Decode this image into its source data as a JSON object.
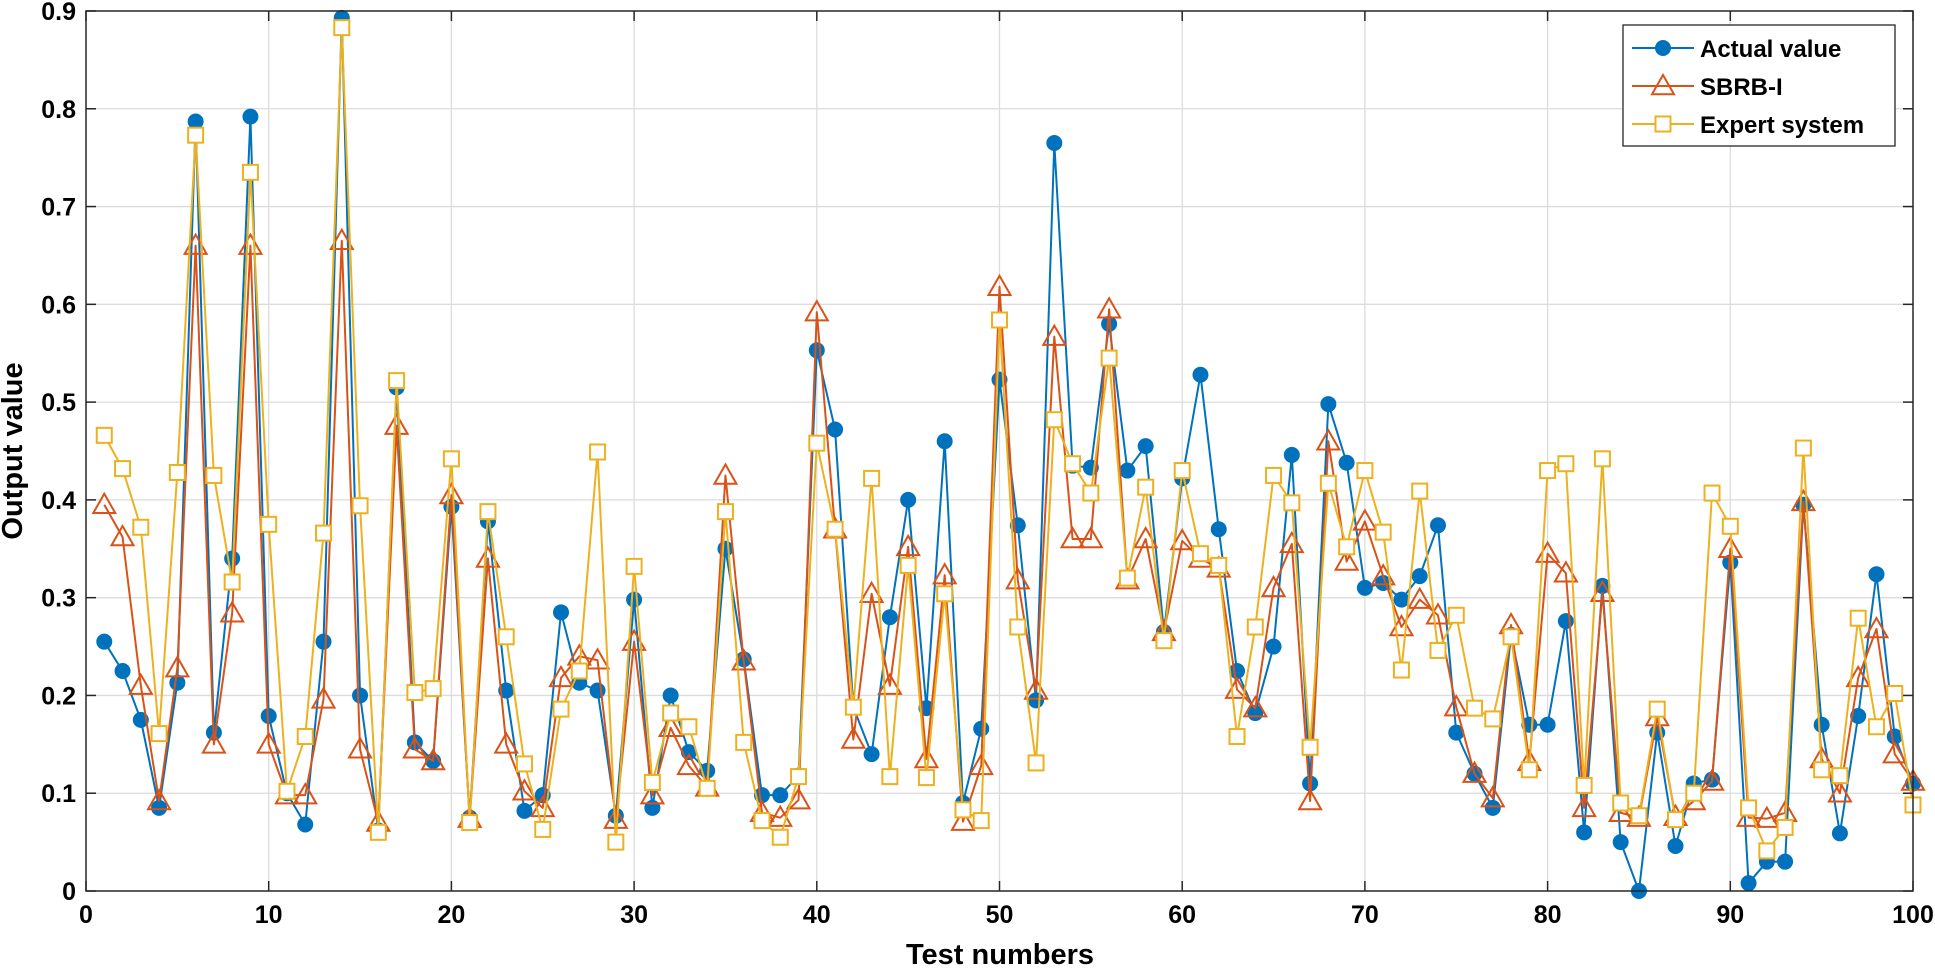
{
  "chart_data": {
    "type": "line",
    "title": "",
    "xlabel": "Test numbers",
    "ylabel": "Output value",
    "xlim": [
      0,
      100
    ],
    "ylim": [
      0,
      0.9
    ],
    "grid": true,
    "legend_position": "top-right",
    "x_ticks": [
      0,
      10,
      20,
      30,
      40,
      50,
      60,
      70,
      80,
      90,
      100
    ],
    "y_ticks": [
      0,
      0.1,
      0.2,
      0.3,
      0.4,
      0.5,
      0.6,
      0.7,
      0.8,
      0.9
    ],
    "x": [
      1,
      2,
      3,
      4,
      5,
      6,
      7,
      8,
      9,
      10,
      11,
      12,
      13,
      14,
      15,
      16,
      17,
      18,
      19,
      20,
      21,
      22,
      23,
      24,
      25,
      26,
      27,
      28,
      29,
      30,
      31,
      32,
      33,
      34,
      35,
      36,
      37,
      38,
      39,
      40,
      41,
      42,
      43,
      44,
      45,
      46,
      47,
      48,
      49,
      50,
      51,
      52,
      53,
      54,
      55,
      56,
      57,
      58,
      59,
      60,
      61,
      62,
      63,
      64,
      65,
      66,
      67,
      68,
      69,
      70,
      71,
      72,
      73,
      74,
      75,
      76,
      77,
      78,
      79,
      80,
      81,
      82,
      83,
      84,
      85,
      86,
      87,
      88,
      89,
      90,
      91,
      92,
      93,
      94,
      95,
      96,
      97,
      98,
      99,
      100
    ],
    "series": [
      {
        "name": "Actual value",
        "color": "#0072BD",
        "marker": "circle",
        "values": [
          0.255,
          0.225,
          0.175,
          0.085,
          0.213,
          0.787,
          0.162,
          0.34,
          0.792,
          0.179,
          0.1,
          0.068,
          0.255,
          0.893,
          0.2,
          0.062,
          0.515,
          0.152,
          0.133,
          0.393,
          0.075,
          0.378,
          0.205,
          0.082,
          0.098,
          0.285,
          0.213,
          0.205,
          0.077,
          0.298,
          0.085,
          0.2,
          0.142,
          0.123,
          0.35,
          0.237,
          0.098,
          0.098,
          0.118,
          0.553,
          0.472,
          0.188,
          0.14,
          0.28,
          0.4,
          0.187,
          0.46,
          0.09,
          0.166,
          0.523,
          0.374,
          0.195,
          0.765,
          0.435,
          0.433,
          0.58,
          0.43,
          0.455,
          0.265,
          0.422,
          0.528,
          0.37,
          0.225,
          0.182,
          0.25,
          0.446,
          0.11,
          0.498,
          0.438,
          0.31,
          0.315,
          0.298,
          0.322,
          0.374,
          0.162,
          0.12,
          0.085,
          0.262,
          0.17,
          0.17,
          0.276,
          0.06,
          0.312,
          0.05,
          0.0,
          0.162,
          0.046,
          0.11,
          0.114,
          0.336,
          0.008,
          0.03,
          0.03,
          0.395,
          0.17,
          0.059,
          0.179,
          0.324,
          0.158,
          0.11
        ]
      },
      {
        "name": "SBRB-I",
        "color": "#D95319",
        "marker": "triangle",
        "values": [
          0.395,
          0.362,
          0.21,
          0.092,
          0.228,
          0.66,
          0.15,
          0.284,
          0.66,
          0.15,
          0.098,
          0.098,
          0.196,
          0.665,
          0.145,
          0.07,
          0.476,
          0.145,
          0.133,
          0.405,
          0.074,
          0.34,
          0.15,
          0.102,
          0.085,
          0.218,
          0.24,
          0.236,
          0.073,
          0.255,
          0.098,
          0.167,
          0.128,
          0.106,
          0.425,
          0.235,
          0.08,
          0.075,
          0.093,
          0.592,
          0.37,
          0.155,
          0.304,
          0.21,
          0.352,
          0.135,
          0.323,
          0.071,
          0.128,
          0.618,
          0.318,
          0.205,
          0.567,
          0.36,
          0.36,
          0.595,
          0.318,
          0.36,
          0.265,
          0.358,
          0.34,
          0.33,
          0.206,
          0.187,
          0.31,
          0.355,
          0.092,
          0.46,
          0.337,
          0.378,
          0.322,
          0.27,
          0.298,
          0.282,
          0.188,
          0.12,
          0.095,
          0.272,
          0.132,
          0.345,
          0.325,
          0.085,
          0.305,
          0.08,
          0.075,
          0.178,
          0.076,
          0.092,
          0.112,
          0.35,
          0.075,
          0.074,
          0.08,
          0.398,
          0.135,
          0.1,
          0.218,
          0.268,
          0.14,
          0.112
        ]
      },
      {
        "name": "Expert system",
        "color": "#EDB120",
        "marker": "square",
        "values": [
          0.466,
          0.432,
          0.372,
          0.161,
          0.428,
          0.773,
          0.425,
          0.316,
          0.735,
          0.375,
          0.102,
          0.158,
          0.366,
          0.883,
          0.394,
          0.06,
          0.522,
          0.203,
          0.207,
          0.442,
          0.07,
          0.388,
          0.26,
          0.13,
          0.063,
          0.186,
          0.225,
          0.449,
          0.05,
          0.332,
          0.111,
          0.182,
          0.168,
          0.105,
          0.388,
          0.152,
          0.072,
          0.055,
          0.117,
          0.458,
          0.37,
          0.188,
          0.422,
          0.117,
          0.333,
          0.116,
          0.304,
          0.083,
          0.072,
          0.584,
          0.27,
          0.131,
          0.482,
          0.437,
          0.407,
          0.545,
          0.32,
          0.413,
          0.256,
          0.43,
          0.345,
          0.333,
          0.158,
          0.27,
          0.425,
          0.397,
          0.147,
          0.417,
          0.352,
          0.43,
          0.367,
          0.226,
          0.409,
          0.246,
          0.282,
          0.187,
          0.176,
          0.26,
          0.124,
          0.43,
          0.437,
          0.108,
          0.442,
          0.09,
          0.077,
          0.186,
          0.073,
          0.1,
          0.407,
          0.373,
          0.085,
          0.041,
          0.065,
          0.453,
          0.124,
          0.118,
          0.279,
          0.168,
          0.202,
          0.088
        ]
      }
    ]
  }
}
